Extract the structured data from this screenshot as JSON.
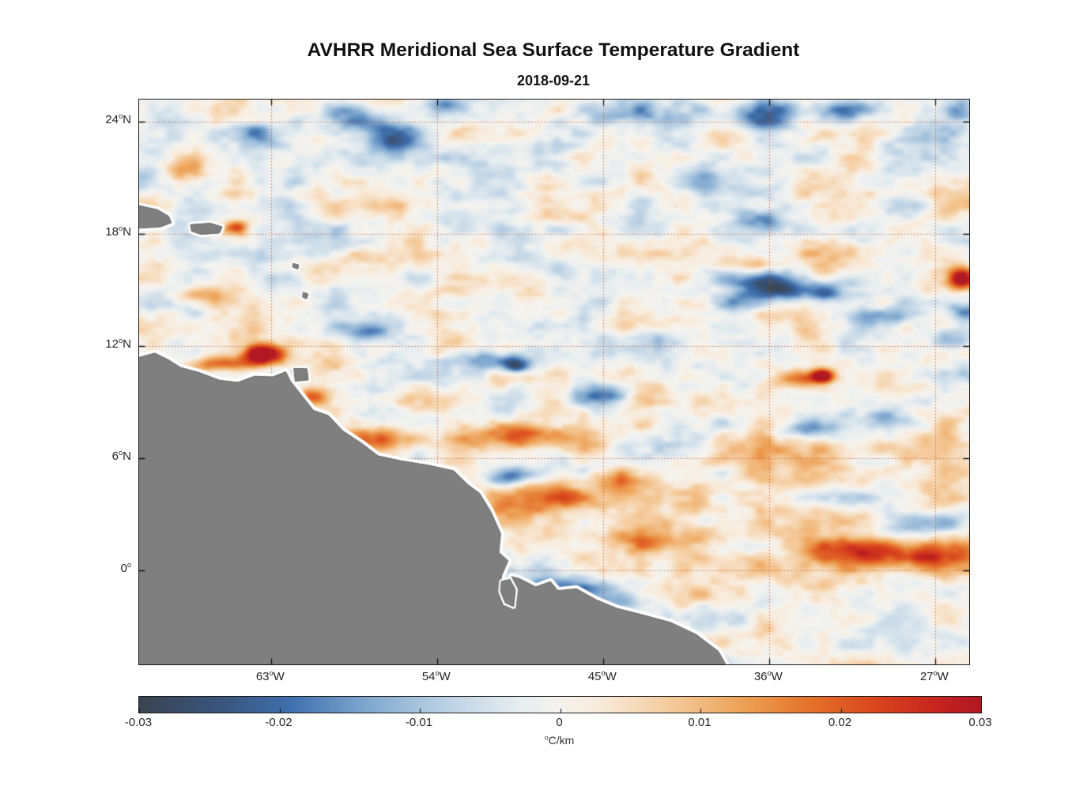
{
  "header": {
    "title": "AVHRR Meridional Sea Surface Temperature Gradient",
    "date": "2018-09-21"
  },
  "chart_data": {
    "type": "heatmap",
    "title": "AVHRR Meridional Sea Surface Temperature Gradient",
    "date": "2018-09-21",
    "units": "°C/km",
    "geo": {
      "lon_min": -70.15,
      "lon_max": -25.15,
      "lat_min": -5.05,
      "lat_max": 25.2
    },
    "value_range": [
      -0.03,
      0.03
    ],
    "degree_symbol": "o",
    "lat_ticks": [
      {
        "value": "24",
        "dir": "N",
        "lat": 24
      },
      {
        "value": "18",
        "dir": "N",
        "lat": 18
      },
      {
        "value": "12",
        "dir": "N",
        "lat": 12
      },
      {
        "value": "6",
        "dir": "N",
        "lat": 6
      },
      {
        "value": "0",
        "dir": "",
        "lat": 0
      }
    ],
    "lon_ticks": [
      {
        "value": "63",
        "dir": "W",
        "lon": -63
      },
      {
        "value": "54",
        "dir": "W",
        "lon": -54
      },
      {
        "value": "45",
        "dir": "W",
        "lon": -45
      },
      {
        "value": "36",
        "dir": "W",
        "lon": -36
      },
      {
        "value": "27",
        "dir": "W",
        "lon": -27
      }
    ],
    "grid": {
      "style": "dotted",
      "color": "rgba(190,75,35,0.8)",
      "dash": [
        1.5,
        2.6
      ]
    },
    "colorbar": {
      "min": -0.03,
      "max": 0.03,
      "tick_values": [
        -0.03,
        -0.02,
        -0.01,
        0,
        0.01,
        0.02,
        0.03
      ],
      "tick_labels": [
        "-0.03",
        "-0.02",
        "-0.01",
        "0",
        "0.01",
        "0.02",
        "0.03"
      ],
      "unit_sup": "o",
      "unit_text": "C/km"
    },
    "colormap": [
      [
        0.0,
        "#394451"
      ],
      [
        0.1,
        "#3a567e"
      ],
      [
        0.18,
        "#3f6fae"
      ],
      [
        0.27,
        "#7fa8cf"
      ],
      [
        0.36,
        "#b9d0e4"
      ],
      [
        0.45,
        "#e7edf0"
      ],
      [
        0.5,
        "#f5f3ee"
      ],
      [
        0.55,
        "#f8ead9"
      ],
      [
        0.64,
        "#f4c795"
      ],
      [
        0.72,
        "#eda055"
      ],
      [
        0.8,
        "#e4702a"
      ],
      [
        0.88,
        "#d8431d"
      ],
      [
        0.95,
        "#c5241f"
      ],
      [
        1.0,
        "#b01823"
      ]
    ],
    "land": {
      "fill": "#7f7f7f",
      "edge": "#636363",
      "halo": "#ffffff",
      "polygons": {
        "mainland": [
          [
            -70.3,
            11.35
          ],
          [
            -69.3,
            11.62
          ],
          [
            -68.6,
            11.28
          ],
          [
            -67.9,
            10.85
          ],
          [
            -66.9,
            10.58
          ],
          [
            -65.8,
            10.17
          ],
          [
            -64.8,
            10.05
          ],
          [
            -63.9,
            10.38
          ],
          [
            -62.9,
            10.35
          ],
          [
            -62.2,
            10.62
          ],
          [
            -61.95,
            10.12
          ],
          [
            -61.5,
            9.55
          ],
          [
            -60.7,
            8.55
          ],
          [
            -59.9,
            8.28
          ],
          [
            -59.1,
            7.45
          ],
          [
            -58.1,
            6.8
          ],
          [
            -57.2,
            6.12
          ],
          [
            -55.95,
            5.85
          ],
          [
            -54.5,
            5.62
          ],
          [
            -53.1,
            5.32
          ],
          [
            -52.3,
            4.55
          ],
          [
            -51.7,
            4.12
          ],
          [
            -51.1,
            3.15
          ],
          [
            -50.55,
            1.95
          ],
          [
            -50.65,
            0.95
          ],
          [
            -50.15,
            0.5
          ],
          [
            -50.5,
            -0.3
          ],
          [
            -50.6,
            -1.45
          ],
          [
            -50.35,
            -2.0
          ],
          [
            -50.05,
            -1.35
          ],
          [
            -49.95,
            -0.35
          ],
          [
            -49.55,
            -0.45
          ],
          [
            -48.65,
            -0.9
          ],
          [
            -47.85,
            -0.62
          ],
          [
            -47.45,
            -1.1
          ],
          [
            -46.45,
            -1.0
          ],
          [
            -45.35,
            -1.6
          ],
          [
            -44.25,
            -2.05
          ],
          [
            -42.85,
            -2.4
          ],
          [
            -41.35,
            -2.8
          ],
          [
            -39.95,
            -3.45
          ],
          [
            -38.75,
            -4.35
          ],
          [
            -38.15,
            -5.4
          ],
          [
            -70.3,
            -5.4
          ]
        ],
        "marajo": [
          [
            -50.5,
            -0.6
          ],
          [
            -50.05,
            -0.5
          ],
          [
            -49.75,
            -1.05
          ],
          [
            -49.85,
            -1.95
          ],
          [
            -50.3,
            -1.75
          ],
          [
            -50.55,
            -1.15
          ]
        ],
        "hispaniola": [
          [
            -70.3,
            19.55
          ],
          [
            -69.15,
            19.3
          ],
          [
            -68.55,
            18.95
          ],
          [
            -68.4,
            18.6
          ],
          [
            -69.0,
            18.38
          ],
          [
            -70.3,
            18.3
          ]
        ],
        "puerto_rico": [
          [
            -67.35,
            18.5
          ],
          [
            -66.3,
            18.58
          ],
          [
            -65.65,
            18.38
          ],
          [
            -65.8,
            18.05
          ],
          [
            -66.8,
            17.98
          ],
          [
            -67.3,
            18.15
          ]
        ],
        "trinidad": [
          [
            -61.75,
            10.8
          ],
          [
            -61.05,
            10.78
          ],
          [
            -60.98,
            10.18
          ],
          [
            -61.68,
            10.12
          ]
        ],
        "islet_guadeloupe": [
          [
            -61.8,
            16.42
          ],
          [
            -61.5,
            16.35
          ],
          [
            -61.55,
            16.12
          ],
          [
            -61.82,
            16.22
          ]
        ],
        "islet_martinique": [
          [
            -61.25,
            14.88
          ],
          [
            -60.98,
            14.78
          ],
          [
            -61.08,
            14.52
          ],
          [
            -61.28,
            14.62
          ]
        ]
      }
    },
    "features": [
      [
        -63.35,
        11.55,
        0.85,
        0.38,
        0.034
      ],
      [
        -64.9,
        18.35,
        0.45,
        0.28,
        0.024
      ],
      [
        -65.6,
        11.05,
        1.3,
        0.3,
        0.016
      ],
      [
        -57.0,
        7.1,
        1.6,
        0.45,
        0.022
      ],
      [
        -49.6,
        7.15,
        2.2,
        0.5,
        0.024
      ],
      [
        -60.9,
        9.3,
        0.7,
        0.35,
        0.016
      ],
      [
        -47.2,
        3.9,
        2.0,
        0.55,
        0.017
      ],
      [
        -44.6,
        4.9,
        1.2,
        0.4,
        0.014
      ],
      [
        -41.5,
        1.5,
        2.2,
        0.55,
        0.017
      ],
      [
        -28.9,
        0.85,
        3.2,
        0.55,
        0.026
      ],
      [
        -34.2,
        10.3,
        1.1,
        0.35,
        0.018
      ],
      [
        -33.1,
        10.4,
        0.4,
        0.25,
        0.024
      ],
      [
        -25.6,
        15.6,
        0.5,
        0.4,
        0.028
      ],
      [
        -67.8,
        21.3,
        0.9,
        0.45,
        0.012
      ],
      [
        -67.0,
        14.6,
        1.1,
        0.4,
        0.015
      ],
      [
        -59.0,
        16.5,
        1.5,
        0.5,
        0.009
      ],
      [
        -36.6,
        16.4,
        0.9,
        0.35,
        0.015
      ],
      [
        -31.5,
        16.9,
        1.2,
        0.4,
        0.012
      ],
      [
        -33.0,
        4.0,
        6.0,
        3.0,
        0.006
      ],
      [
        -53.5,
        2.5,
        3.0,
        1.2,
        0.006
      ],
      [
        -58.6,
        24.2,
        1.3,
        0.6,
        -0.019
      ],
      [
        -56.3,
        23.2,
        0.8,
        0.5,
        -0.021
      ],
      [
        -63.6,
        23.4,
        0.9,
        0.45,
        -0.015
      ],
      [
        -53.6,
        25.0,
        1.0,
        0.4,
        -0.014
      ],
      [
        -35.6,
        15.1,
        1.3,
        0.55,
        -0.027
      ],
      [
        -37.9,
        14.3,
        1.0,
        0.4,
        -0.017
      ],
      [
        -32.8,
        14.9,
        1.1,
        0.4,
        -0.019
      ],
      [
        -29.6,
        13.6,
        1.1,
        0.35,
        -0.015
      ],
      [
        -25.4,
        13.9,
        0.6,
        0.4,
        -0.014
      ],
      [
        -51.4,
        11.2,
        1.6,
        0.35,
        -0.019
      ],
      [
        -49.7,
        10.9,
        0.5,
        0.3,
        -0.024
      ],
      [
        -45.1,
        9.4,
        1.2,
        0.4,
        -0.017
      ],
      [
        -50.2,
        5.0,
        0.8,
        0.35,
        -0.019
      ],
      [
        -36.4,
        24.3,
        1.6,
        0.6,
        -0.015
      ],
      [
        -32.4,
        24.6,
        1.2,
        0.5,
        -0.013
      ],
      [
        -28.3,
        23.3,
        1.0,
        0.5,
        -0.012
      ],
      [
        -25.6,
        24.6,
        0.7,
        0.5,
        -0.017
      ],
      [
        -26.3,
        12.4,
        0.8,
        0.5,
        -0.015
      ],
      [
        -46.2,
        -0.9,
        1.8,
        0.4,
        -0.019
      ],
      [
        -44.0,
        -1.6,
        1.2,
        0.35,
        -0.015
      ],
      [
        -69.6,
        20.9,
        0.8,
        0.4,
        -0.011
      ],
      [
        -39.6,
        20.8,
        1.0,
        0.5,
        -0.011
      ],
      [
        -36.2,
        18.7,
        1.0,
        0.4,
        -0.012
      ],
      [
        -33.9,
        7.5,
        1.2,
        0.35,
        -0.012
      ],
      [
        -29.7,
        8.3,
        1.3,
        0.4,
        -0.012
      ],
      [
        -31.2,
        3.9,
        1.4,
        0.35,
        -0.012
      ],
      [
        -41.9,
        12.4,
        1.2,
        0.4,
        -0.012
      ],
      [
        -57.9,
        12.7,
        0.8,
        0.3,
        -0.012
      ],
      [
        -43.5,
        24.5,
        1.5,
        0.5,
        -0.01
      ],
      [
        -27.5,
        2.5,
        1.5,
        0.4,
        -0.011
      ],
      [
        -47.8,
        16.0,
        1.3,
        0.5,
        -0.008
      ]
    ],
    "noise": {
      "seed": 11,
      "octaves": [
        [
          2.4,
          1.3,
          0.0065
        ],
        [
          1.1,
          0.65,
          0.004
        ],
        [
          0.5,
          0.32,
          0.0022
        ]
      ]
    }
  }
}
